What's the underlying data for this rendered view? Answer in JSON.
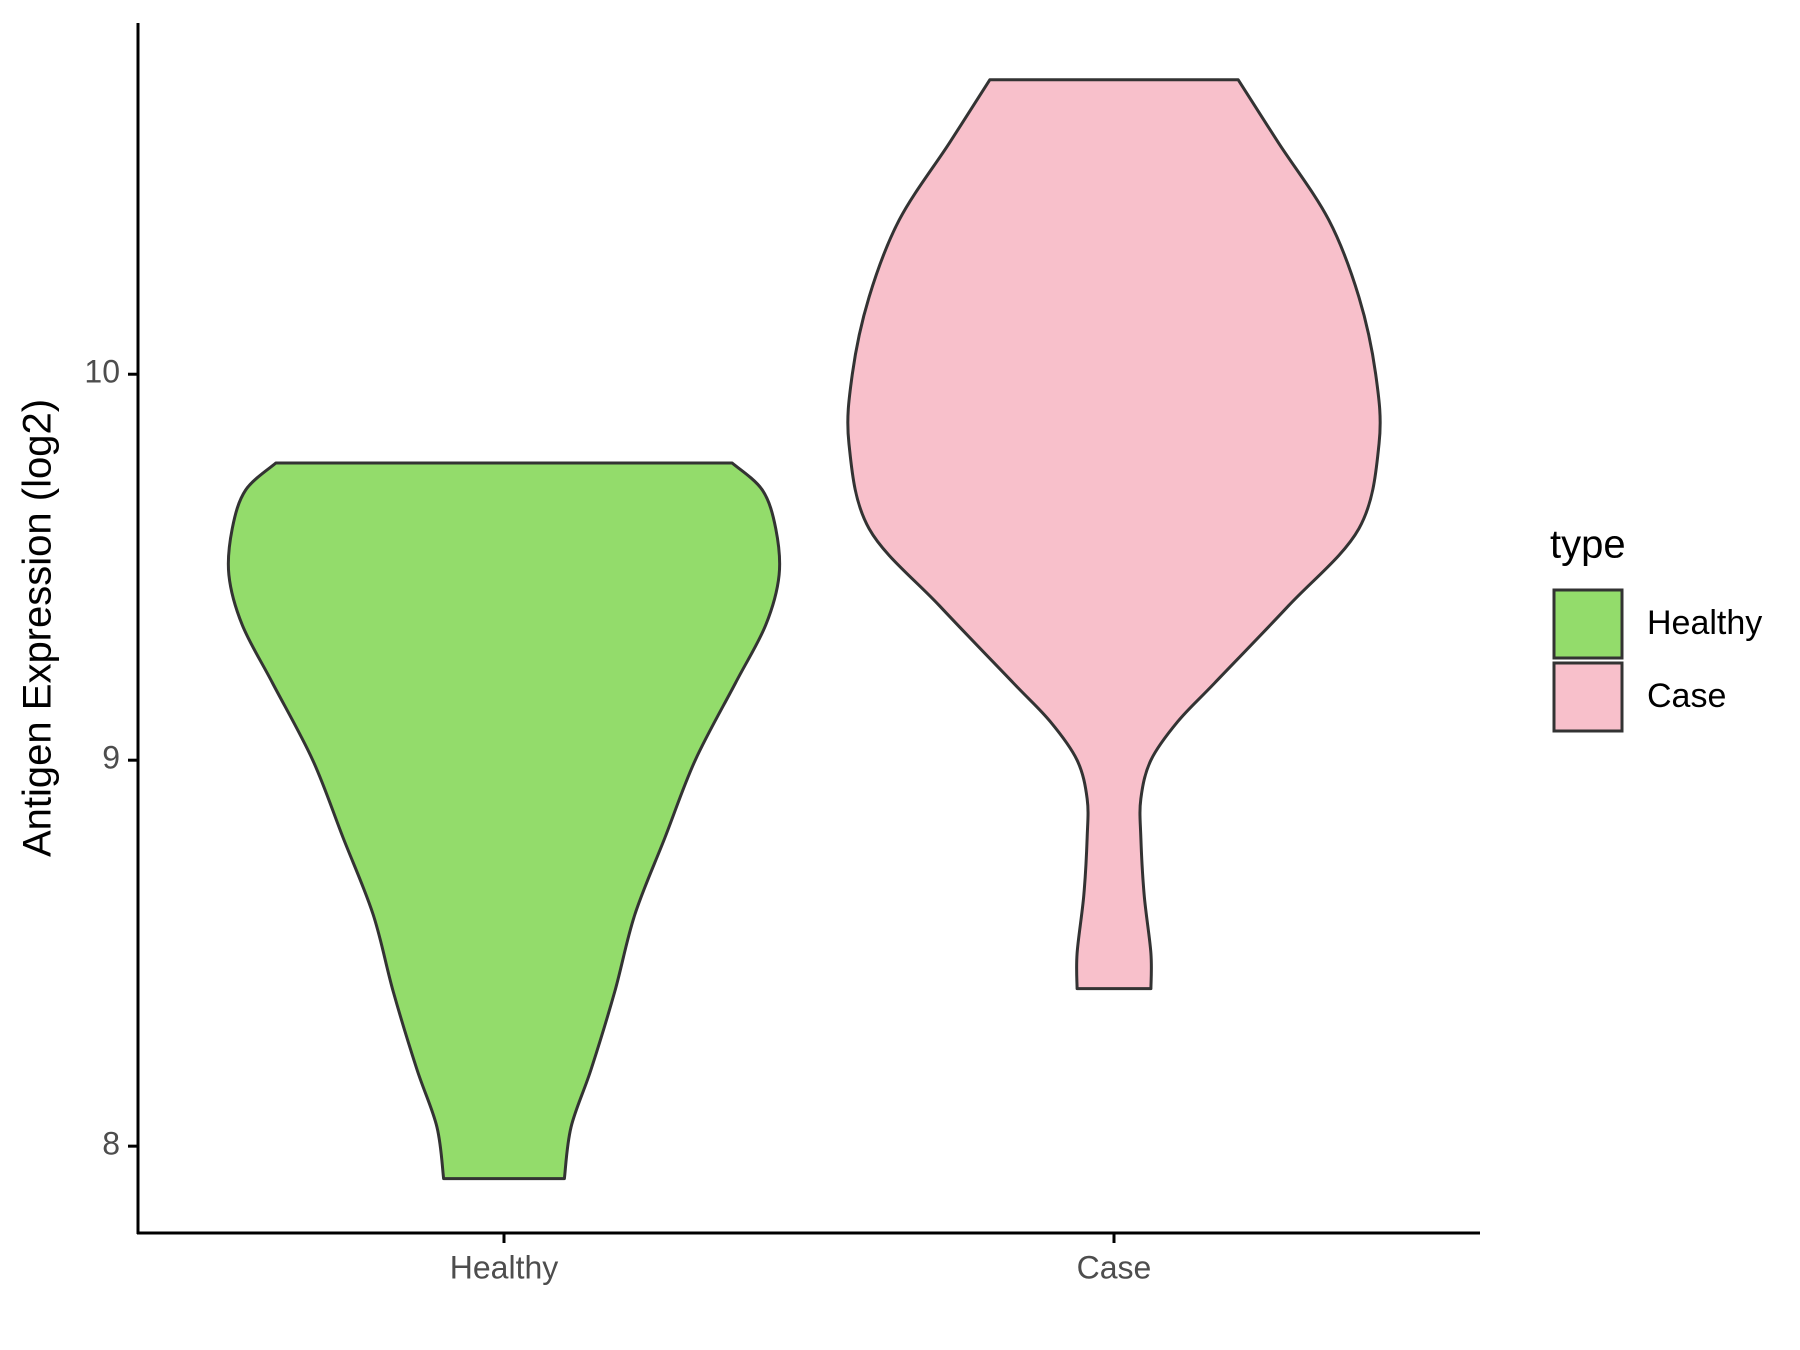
{
  "chart_data": {
    "type": "violin",
    "y_label": "Antigen Expression (log2)",
    "categories": [
      "Healthy",
      "Case"
    ],
    "legend_title": "type",
    "ylim": [
      7.775,
      10.91
    ],
    "yticks": [
      8,
      9,
      10
    ],
    "series": [
      {
        "name": "Healthy",
        "color": "#93dc6b",
        "y": [
          9.77,
          9.7,
          9.6,
          9.48,
          9.35,
          9.2,
          9.0,
          8.8,
          8.6,
          8.4,
          8.2,
          8.05,
          7.916
        ],
        "width": [
          0.68,
          0.77,
          0.81,
          0.82,
          0.78,
          0.69,
          0.57,
          0.48,
          0.39,
          0.33,
          0.26,
          0.2,
          0.18
        ]
      },
      {
        "name": "Case",
        "color": "#f8c0cb",
        "y": [
          10.763,
          10.6,
          10.4,
          10.2,
          10.0,
          9.82,
          9.6,
          9.4,
          9.2,
          9.1,
          9.0,
          8.9,
          8.8,
          8.65,
          8.5,
          8.408
        ],
        "width": [
          0.37,
          0.49,
          0.64,
          0.73,
          0.78,
          0.79,
          0.73,
          0.52,
          0.3,
          0.19,
          0.11,
          0.08,
          0.08,
          0.09,
          0.11,
          0.11
        ]
      }
    ]
  }
}
